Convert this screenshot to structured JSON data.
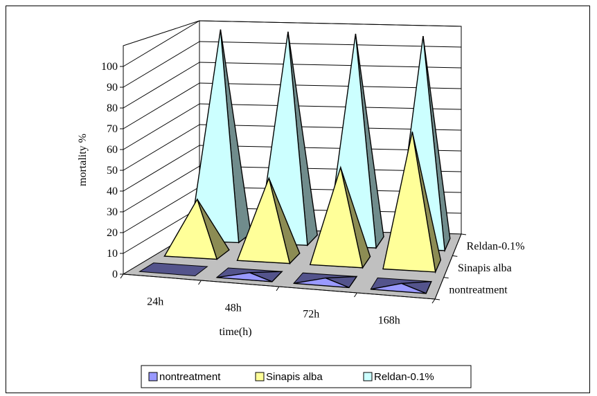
{
  "chart_data": {
    "type": "bar",
    "style": "3d-pyramid",
    "categories": [
      "24h",
      "48h",
      "72h",
      "168h"
    ],
    "series": [
      {
        "name": "nontreatment",
        "values": [
          0,
          1,
          1,
          1
        ],
        "color": "#9999ff"
      },
      {
        "name": "Sinapis alba",
        "values": [
          26,
          38,
          45,
          64
        ],
        "color": "#ffff99"
      },
      {
        "name": "Reldan-0.1%",
        "values": [
          100,
          100,
          100,
          100
        ],
        "color": "#ccffff"
      }
    ],
    "xlabel": "time(h)",
    "ylabel": "mortality %",
    "ylim": [
      0,
      100
    ],
    "yticks": [
      "0",
      "10",
      "20",
      "30",
      "40",
      "50",
      "60",
      "70",
      "80",
      "90",
      "100"
    ],
    "grid": true,
    "floor_color": "#c0c0c0",
    "legend": {
      "placement": "bottom",
      "entries": [
        "nontreatment",
        "Sinapis alba",
        "Reldan-0.1%"
      ]
    }
  }
}
